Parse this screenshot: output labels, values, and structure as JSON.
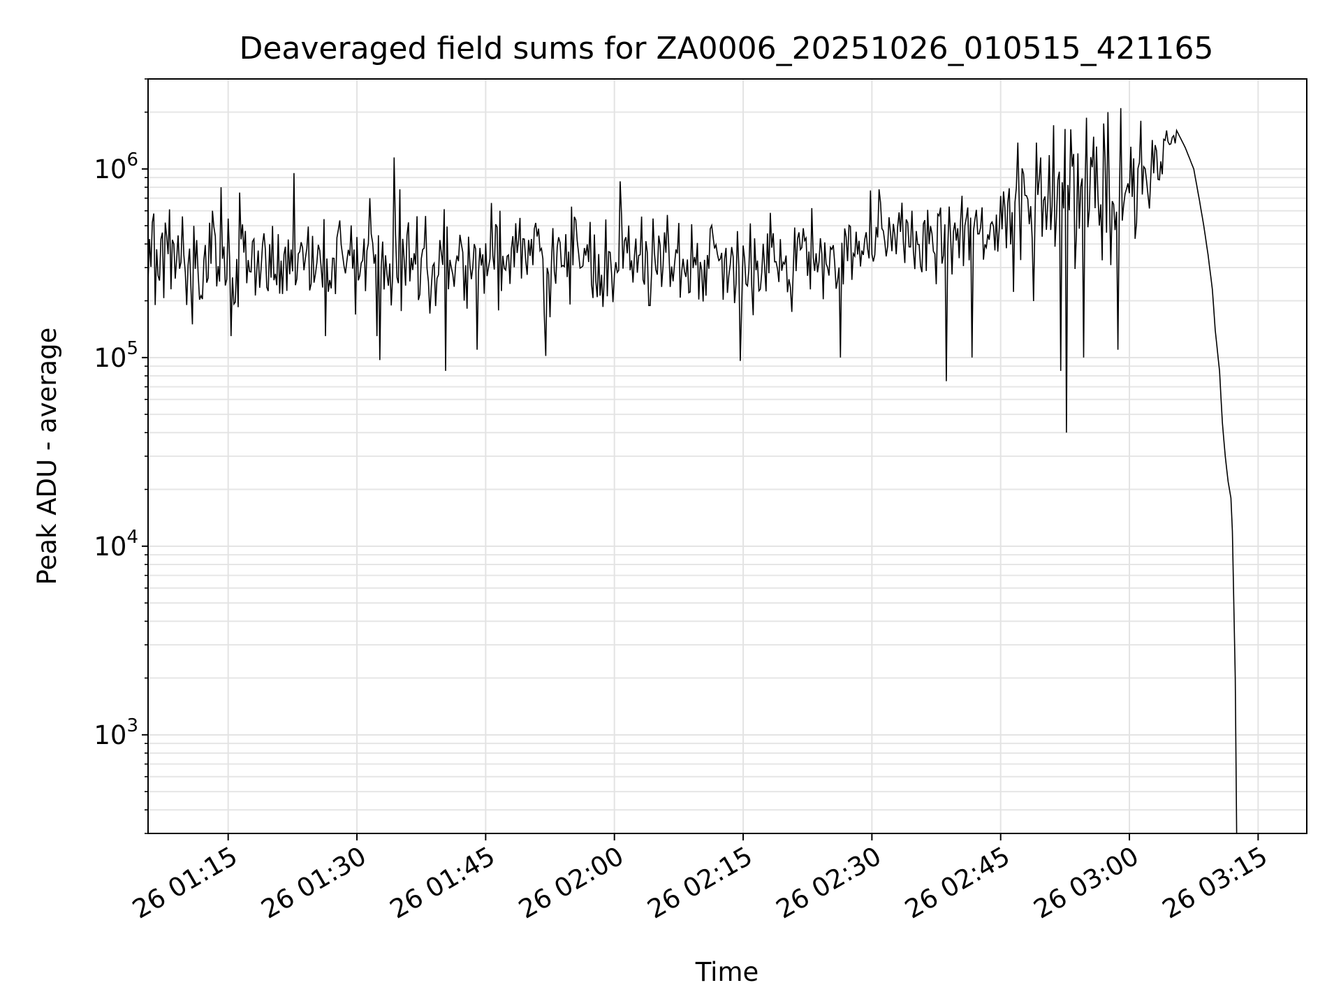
{
  "chart_data": {
    "type": "line",
    "title": "Deaveraged field sums for ZA0006_20251026_010515_421165",
    "xlabel": "Time",
    "ylabel": "Peak ADU - average",
    "xlim": [
      "2025-10-26 01:05:40",
      "2025-10-26 03:20:40"
    ],
    "ylim": [
      300,
      3000000
    ],
    "yscale": "log",
    "grid": true,
    "x_ticks": [
      "26 01:15",
      "26 01:30",
      "26 01:45",
      "26 02:00",
      "26 02:15",
      "26 02:30",
      "26 02:45",
      "26 03:00",
      "26 03:15"
    ],
    "y_ticks": [
      {
        "base": "10",
        "exp": "3",
        "value": 1000
      },
      {
        "base": "10",
        "exp": "4",
        "value": 10000
      },
      {
        "base": "10",
        "exp": "5",
        "value": 100000
      },
      {
        "base": "10",
        "exp": "6",
        "value": 1000000
      }
    ],
    "series": [
      {
        "color": "#000000",
        "x_start": "2025-10-26 01:05:40",
        "x_end": "2025-10-26 03:12:30",
        "baseline_to": "2025-10-26 03:04:00",
        "peak_time": "2025-10-26 03:05:30",
        "points": [
          [
            "2025-10-26 01:05:40",
            250000
          ],
          [
            "2025-10-26 01:06:30",
            190000
          ],
          [
            "2025-10-26 01:07:20",
            460000
          ],
          [
            "2025-10-26 01:08:40",
            400000
          ],
          [
            "2025-10-26 01:09:40",
            560000
          ],
          [
            "2025-10-26 01:10:10",
            190000
          ],
          [
            "2025-10-26 01:10:50",
            150000
          ],
          [
            "2025-10-26 01:13:10",
            600000
          ],
          [
            "2025-10-26 01:14:10",
            800000
          ],
          [
            "2025-10-26 01:15:20",
            130000
          ],
          [
            "2025-10-26 01:16:20",
            750000
          ],
          [
            "2025-10-26 01:22:40",
            950000
          ],
          [
            "2025-10-26 01:26:20",
            130000
          ],
          [
            "2025-10-26 01:31:30",
            700000
          ],
          [
            "2025-10-26 01:32:20",
            130000
          ],
          [
            "2025-10-26 01:32:40",
            97000
          ],
          [
            "2025-10-26 01:34:20",
            1150000
          ],
          [
            "2025-10-26 01:35:00",
            780000
          ],
          [
            "2025-10-26 01:40:20",
            85000
          ],
          [
            "2025-10-26 01:41:00",
            300000
          ],
          [
            "2025-10-26 01:44:00",
            110000
          ],
          [
            "2025-10-26 01:45:40",
            660000
          ],
          [
            "2025-10-26 01:52:00",
            102000
          ],
          [
            "2025-10-26 02:00:40",
            860000
          ],
          [
            "2025-10-26 02:04:20",
            280000
          ],
          [
            "2025-10-26 02:14:40",
            96000
          ],
          [
            "2025-10-26 02:23:00",
            620000
          ],
          [
            "2025-10-26 02:26:20",
            100000
          ],
          [
            "2025-10-26 02:34:40",
            600000
          ],
          [
            "2025-10-26 02:38:40",
            75000
          ],
          [
            "2025-10-26 02:41:40",
            100000
          ],
          [
            "2025-10-26 02:47:00",
            1380000
          ],
          [
            "2025-10-26 02:49:40",
            1150000
          ],
          [
            "2025-10-26 02:52:00",
            85000
          ],
          [
            "2025-10-26 02:52:40",
            40000
          ],
          [
            "2025-10-26 02:53:30",
            1200000
          ],
          [
            "2025-10-26 02:54:40",
            100000
          ],
          [
            "2025-10-26 02:57:30",
            2000000
          ],
          [
            "2025-10-26 02:58:40",
            110000
          ],
          [
            "2025-10-26 02:59:00",
            2100000
          ],
          [
            "2025-10-26 03:01:20",
            1800000
          ],
          [
            "2025-10-26 03:04:20",
            1600000
          ],
          [
            "2025-10-26 03:05:30",
            1600000
          ],
          [
            "2025-10-26 03:06:30",
            1300000
          ],
          [
            "2025-10-26 03:07:30",
            1000000
          ],
          [
            "2025-10-26 03:08:10",
            680000
          ],
          [
            "2025-10-26 03:08:40",
            500000
          ],
          [
            "2025-10-26 03:09:10",
            350000
          ],
          [
            "2025-10-26 03:09:40",
            230000
          ],
          [
            "2025-10-26 03:10:00",
            140000
          ],
          [
            "2025-10-26 03:10:30",
            85000
          ],
          [
            "2025-10-26 03:10:50",
            45000
          ],
          [
            "2025-10-26 03:11:10",
            30000
          ],
          [
            "2025-10-26 03:11:30",
            22000
          ],
          [
            "2025-10-26 03:11:50",
            18000
          ],
          [
            "2025-10-26 03:12:00",
            12000
          ],
          [
            "2025-10-26 03:12:10",
            5000
          ],
          [
            "2025-10-26 03:12:20",
            2000
          ],
          [
            "2025-10-26 03:12:30",
            300
          ]
        ]
      }
    ]
  }
}
